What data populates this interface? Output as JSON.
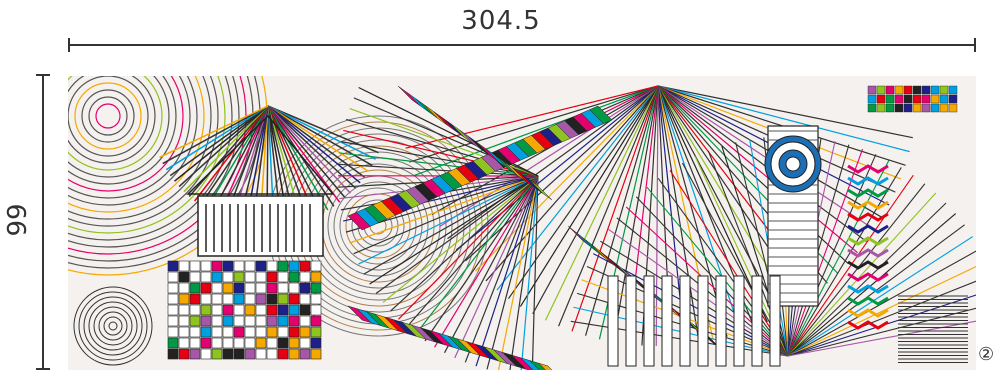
{
  "dimensions": {
    "width_label": "304.5",
    "height_label": "99"
  },
  "figure": {
    "number_label": "②"
  },
  "artwork": {
    "palette": [
      "#e4006e",
      "#00a0e0",
      "#009944",
      "#f5a800",
      "#e60012",
      "#1d2088",
      "#8fc31f",
      "#a757a8",
      "#222222"
    ]
  }
}
